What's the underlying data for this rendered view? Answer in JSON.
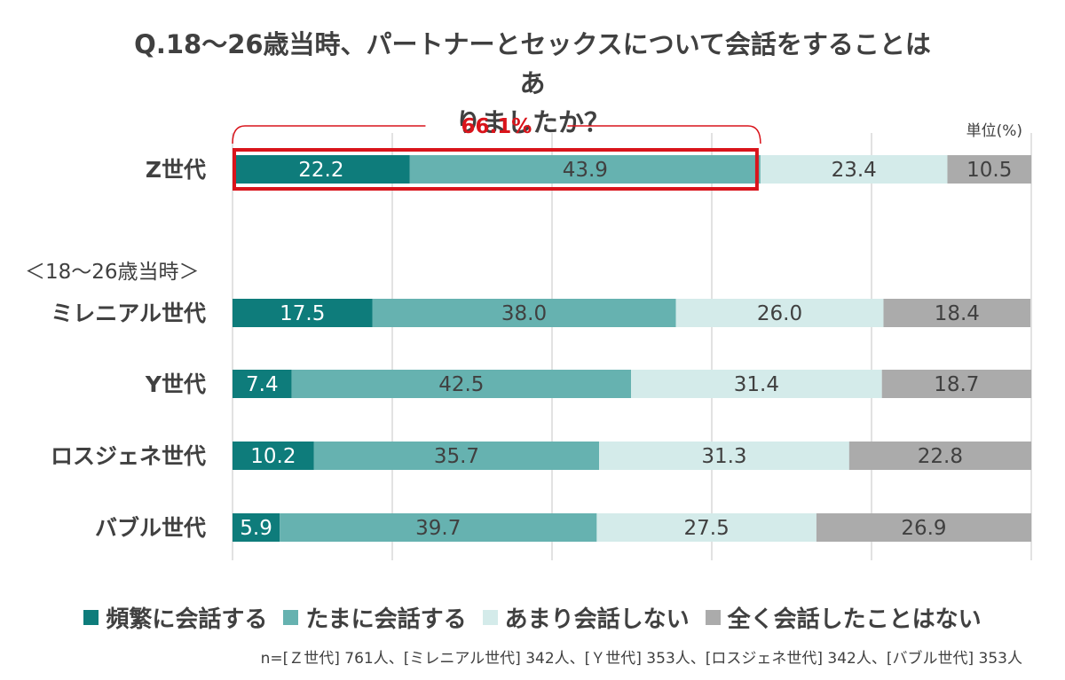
{
  "chart_data": {
    "type": "bar",
    "orientation": "horizontal",
    "stacked": true,
    "title_lines": [
      "Q.18〜26歳当時、パートナーとセックスについて会話をすることはあ",
      "りましたか？"
    ],
    "unit_label": "単位(%)",
    "group_label": "＜18〜26歳当時＞",
    "categories": [
      "Z世代",
      "ミレニアル世代",
      "Y世代",
      "ロスジェネ世代",
      "バブル世代"
    ],
    "series": [
      {
        "name": "頻繁に会話する",
        "color": "#0e7c7b",
        "label_color": "#ffffff",
        "values": [
          22.2,
          17.5,
          7.4,
          10.2,
          5.9
        ]
      },
      {
        "name": "たまに会話する",
        "color": "#66b2b0",
        "label_color": "#404040",
        "values": [
          43.9,
          38.0,
          42.5,
          35.7,
          39.7
        ]
      },
      {
        "name": "あまり会話しない",
        "color": "#d4ebea",
        "label_color": "#404040",
        "values": [
          23.4,
          26.0,
          31.4,
          31.3,
          27.5
        ]
      },
      {
        "name": "全く会話したことはない",
        "color": "#ababab",
        "label_color": "#404040",
        "values": [
          10.5,
          18.4,
          18.7,
          22.8,
          26.9
        ]
      }
    ],
    "value_labels": [
      [
        "22.2",
        "43.9",
        "23.4",
        "10.5"
      ],
      [
        "17.5",
        "38.0",
        "26.0",
        "18.4"
      ],
      [
        "7.4",
        "42.5",
        "31.4",
        "18.7"
      ],
      [
        "10.2",
        "35.7",
        "31.3",
        "22.8"
      ],
      [
        "5.9",
        "39.7",
        "27.5",
        "26.9"
      ]
    ],
    "xlim": [
      0,
      100
    ],
    "grid": true,
    "highlight": {
      "category": "Z世代",
      "series_count": 2,
      "value": 66.1,
      "label": "66.1%",
      "color": "#d9141b"
    },
    "legend_position": "bottom",
    "footnote": "n=[Ｚ世代] 761人、[ミレニアル世代] 342人、[Ｙ世代] 353人、[ロスジェネ世代] 342人、[バブル世代] 353人"
  }
}
